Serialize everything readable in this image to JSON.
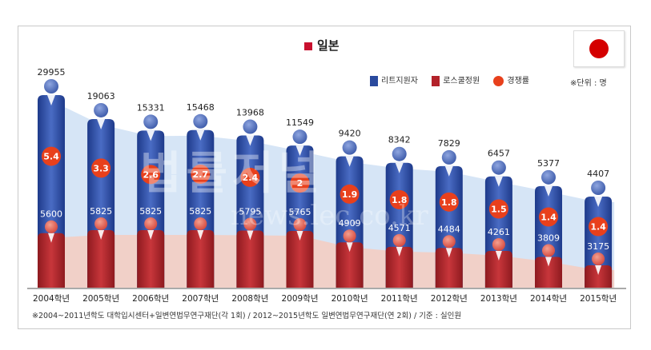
{
  "chart_data": {
    "type": "bar",
    "title": "일본",
    "categories": [
      "2004학년",
      "2005학년",
      "2006학년",
      "2007학년",
      "2008학년",
      "2009학년",
      "2010학년",
      "2011학년",
      "2012학년",
      "2013학년",
      "2014학년",
      "2015학년"
    ],
    "series": [
      {
        "name": "리트지원자",
        "values": [
          29955,
          19063,
          15331,
          15468,
          13968,
          11549,
          9420,
          8342,
          7829,
          6457,
          5377,
          4407
        ],
        "color": "#2a4a9e"
      },
      {
        "name": "로스쿨정원",
        "values": [
          5600,
          5825,
          5825,
          5825,
          5795,
          5765,
          4909,
          4571,
          4484,
          4261,
          3809,
          3175
        ],
        "color": "#b3222a"
      },
      {
        "name": "경쟁률",
        "values": [
          5.4,
          3.3,
          2.6,
          2.7,
          2.4,
          2,
          1.9,
          1.8,
          1.8,
          1.5,
          1.4,
          1.4
        ],
        "color": "#e8401c"
      }
    ],
    "competition_labels": [
      "5.4",
      "3.3",
      "2.6",
      "2.7",
      "2.4",
      "2",
      "1.9",
      "1.8",
      "1.8",
      "1.5",
      "1.4",
      "1.4"
    ],
    "unit": "※단위 : 명",
    "footnote": "※2004~2011년학도 대학입시센터+일변연법무연구재단(각 1회) / 2012~2015년학도 일변연법무연구재단(연 2회) / 기준 : 실인원",
    "watermark": "법률저널",
    "watermark_url": "news.lec.co.kr"
  }
}
